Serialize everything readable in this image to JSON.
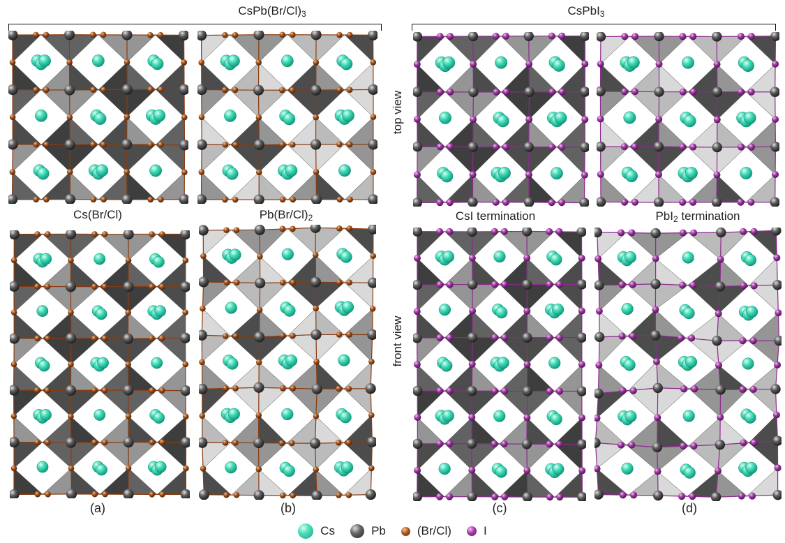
{
  "groups": {
    "left_title_main": "CsPb(Br/Cl)",
    "left_title_sub": "3",
    "right_title_main": "CsPbI",
    "right_title_sub": "3"
  },
  "side_labels": {
    "top": "top view",
    "front": "front view"
  },
  "panel_titles": {
    "a": "Cs(Br/Cl)",
    "b_main": "Pb(Br/Cl)",
    "b_sub": "2",
    "c": "CsI termination",
    "d_main": "PbI",
    "d_sub": "2",
    "d_rest": " termination"
  },
  "panel_letters": {
    "a": "(a)",
    "b": "(b)",
    "c": "(c)",
    "d": "(d)"
  },
  "legend": [
    {
      "key": "cs",
      "label": "Cs"
    },
    {
      "key": "pb",
      "label": "Pb"
    },
    {
      "key": "brcl",
      "label": "(Br/Cl)"
    },
    {
      "key": "iod",
      "label": "I"
    }
  ],
  "colors": {
    "cs": "#2fd1a8",
    "pb": "#444444",
    "brcl": "#8a3d10",
    "iodine": "#8e2a92",
    "octa_dark": "#3d3d3d",
    "octa_mid": "#8c8c8c",
    "octa_light": "#d6d6d6"
  }
}
